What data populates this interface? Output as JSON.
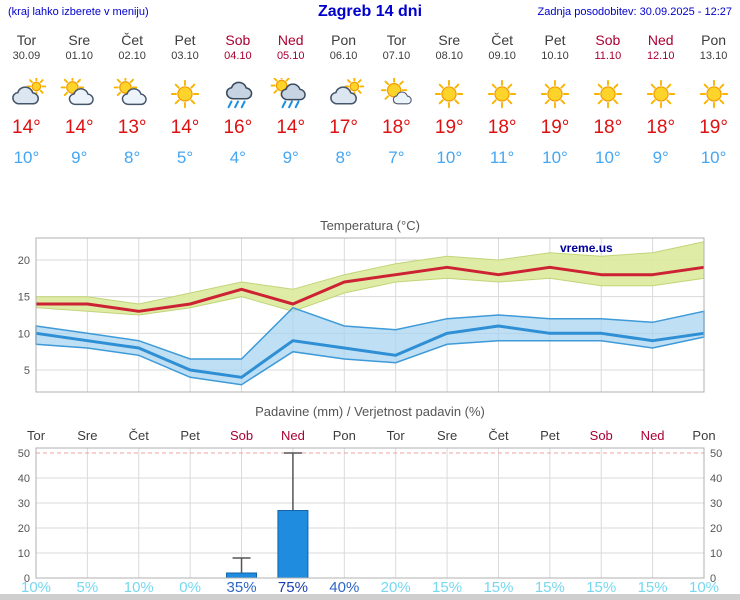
{
  "header": {
    "menu_hint": "(kraj lahko izberete v meniju)",
    "title": "Zagreb 14 dni",
    "last_update": "Zadnja posodobitev: 30.09.2025 - 12:27"
  },
  "watermark": "vreme.us",
  "colors": {
    "header_blue": "#0000cc",
    "weekday_text": "#3c3c3c",
    "weekend_text": "#aa0033",
    "temp_high": "#dd1111",
    "temp_low": "#45a6f2",
    "chart_title": "#555555",
    "line_high": "#cc2233",
    "band_high": "#dcea9e",
    "band_high_edge": "#c2d478",
    "line_low": "#2e8fd5",
    "band_low": "#a6d3f0",
    "band_low_edge": "#3e9ad8",
    "bar_fill": "#1f8ce0",
    "bar_edge": "#1462a8",
    "whisker": "#555555",
    "pct_low": "#76d8ee",
    "pct_mid": "#2f66c4",
    "pct_high": "#1c3fb0",
    "watermark": "#000099",
    "grid": "#dadada",
    "grid_top": "#f0a0a0",
    "axis_label": "#555555",
    "border": "#b0b0b0"
  },
  "days": [
    {
      "name": "Tor",
      "date": "30.09",
      "weekend": false,
      "icon": "cloudy",
      "tmax": "14°",
      "tmin": "10°"
    },
    {
      "name": "Sre",
      "date": "01.10",
      "weekend": false,
      "icon": "partly-cloudy",
      "tmax": "14°",
      "tmin": "9°"
    },
    {
      "name": "Čet",
      "date": "02.10",
      "weekend": false,
      "icon": "partly-cloudy",
      "tmax": "13°",
      "tmin": "8°"
    },
    {
      "name": "Pet",
      "date": "03.10",
      "weekend": false,
      "icon": "sunny",
      "tmax": "14°",
      "tmin": "5°"
    },
    {
      "name": "Sob",
      "date": "04.10",
      "weekend": true,
      "icon": "rain",
      "tmax": "16°",
      "tmin": "4°"
    },
    {
      "name": "Ned",
      "date": "05.10",
      "weekend": true,
      "icon": "rain-sun",
      "tmax": "14°",
      "tmin": "9°"
    },
    {
      "name": "Pon",
      "date": "06.10",
      "weekend": false,
      "icon": "cloudy",
      "tmax": "17°",
      "tmin": "8°"
    },
    {
      "name": "Tor",
      "date": "07.10",
      "weekend": false,
      "icon": "mostly-sunny",
      "tmax": "18°",
      "tmin": "7°"
    },
    {
      "name": "Sre",
      "date": "08.10",
      "weekend": false,
      "icon": "sunny",
      "tmax": "19°",
      "tmin": "10°"
    },
    {
      "name": "Čet",
      "date": "09.10",
      "weekend": false,
      "icon": "sunny",
      "tmax": "18°",
      "tmin": "11°"
    },
    {
      "name": "Pet",
      "date": "10.10",
      "weekend": false,
      "icon": "sunny",
      "tmax": "19°",
      "tmin": "10°"
    },
    {
      "name": "Sob",
      "date": "11.10",
      "weekend": true,
      "icon": "sunny",
      "tmax": "18°",
      "tmin": "10°"
    },
    {
      "name": "Ned",
      "date": "12.10",
      "weekend": true,
      "icon": "sunny",
      "tmax": "18°",
      "tmin": "9°"
    },
    {
      "name": "Pon",
      "date": "13.10",
      "weekend": false,
      "icon": "sunny",
      "tmax": "19°",
      "tmin": "10°"
    }
  ],
  "chart_data": [
    {
      "type": "line",
      "title": "Temperatura (°C)",
      "x_labels": [
        "Tor 30.09",
        "Sre 01.10",
        "Čet 02.10",
        "Pet 03.10",
        "Sob 04.10",
        "Ned 05.10",
        "Pon 06.10",
        "Tor 07.10",
        "Sre 08.10",
        "Čet 09.10",
        "Pet 10.10",
        "Sob 11.10",
        "Ned 12.10",
        "Pon 13.10"
      ],
      "ylim": [
        2,
        23
      ],
      "yticks": [
        5,
        10,
        15,
        20
      ],
      "grid": true,
      "legend": "none",
      "watermark": "vreme.us",
      "series": [
        {
          "name": "temp-max",
          "values": [
            14,
            14,
            13,
            14,
            16,
            14,
            17,
            18,
            19,
            18,
            19,
            18,
            18,
            19
          ]
        },
        {
          "name": "temp-max-upper",
          "values": [
            15,
            15,
            14,
            15.5,
            17,
            16,
            18,
            19.5,
            20.5,
            20,
            21,
            20.5,
            21,
            22.5
          ]
        },
        {
          "name": "temp-max-lower",
          "values": [
            13.5,
            13,
            12.5,
            13.5,
            15,
            13,
            15.5,
            17,
            17.5,
            17,
            17.5,
            16.5,
            16.5,
            17.5
          ]
        },
        {
          "name": "temp-min",
          "values": [
            10,
            9,
            8,
            5,
            4,
            9,
            8,
            7,
            10,
            11,
            10,
            10,
            9,
            10
          ]
        },
        {
          "name": "temp-min-upper",
          "values": [
            11,
            10,
            9,
            6.5,
            6.5,
            13.5,
            11,
            10.5,
            12,
            12.5,
            12,
            12,
            11.5,
            13
          ]
        },
        {
          "name": "temp-min-lower",
          "values": [
            8.5,
            8,
            7,
            4,
            3,
            7.5,
            6.5,
            6,
            8.5,
            9,
            9,
            9,
            8,
            9.5
          ]
        }
      ]
    },
    {
      "type": "bar",
      "title": "Padavine (mm) / Verjetnost padavin (%)",
      "categories": [
        "Tor",
        "Sre",
        "Čet",
        "Pet",
        "Sob",
        "Ned",
        "Pon",
        "Tor",
        "Sre",
        "Čet",
        "Pet",
        "Sob",
        "Ned",
        "Pon"
      ],
      "weekend": [
        false,
        false,
        false,
        false,
        true,
        true,
        false,
        false,
        false,
        false,
        false,
        true,
        true,
        false
      ],
      "values": [
        0,
        0,
        0,
        0,
        2,
        27,
        0,
        0,
        0,
        0,
        0,
        0,
        0,
        0
      ],
      "whisker_max": [
        0,
        0,
        0,
        0,
        8,
        50,
        0,
        0,
        0,
        0,
        0,
        0,
        0,
        0
      ],
      "probabilities_pct": [
        10,
        5,
        10,
        0,
        35,
        75,
        40,
        20,
        15,
        15,
        15,
        15,
        15,
        10
      ],
      "ylim": [
        0,
        52
      ],
      "yticks": [
        0,
        10,
        20,
        30,
        40,
        50
      ],
      "grid": true
    }
  ]
}
